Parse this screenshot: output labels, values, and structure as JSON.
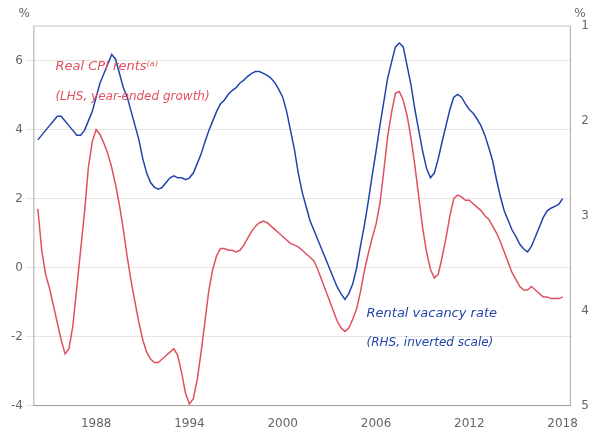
{
  "chart_data": {
    "type": "line",
    "ylabel": "%",
    "y2label": "%",
    "grid": true,
    "xlim": [
      1984.0,
      2018.5
    ],
    "xticks": [
      1988,
      1994,
      2000,
      2006,
      2012,
      2018
    ],
    "ylim": [
      -4,
      7
    ],
    "yticks": [
      -4,
      -2,
      0,
      2,
      4,
      6
    ],
    "y2lim": [
      5,
      1
    ],
    "y2ticks": [
      1,
      2,
      3,
      4,
      5
    ],
    "annotations": [
      {
        "text": "Real CPI rents⁽ᵃ⁾",
        "color": "#e05060"
      },
      {
        "text": "(LHS, year-ended growth)",
        "color": "#e05060"
      },
      {
        "text": "Rental vacancy rate",
        "color": "#2244aa"
      },
      {
        "text": "(RHS, inverted scale)",
        "color": "#2244aa"
      }
    ],
    "x": [
      1984.25,
      1984.5,
      1984.75,
      1985.0,
      1985.25,
      1985.5,
      1985.75,
      1986.0,
      1986.25,
      1986.5,
      1986.75,
      1987.0,
      1987.25,
      1987.5,
      1987.75,
      1988.0,
      1988.25,
      1988.5,
      1988.75,
      1989.0,
      1989.25,
      1989.5,
      1989.75,
      1990.0,
      1990.25,
      1990.5,
      1990.75,
      1991.0,
      1991.25,
      1991.5,
      1991.75,
      1992.0,
      1992.25,
      1992.5,
      1992.75,
      1993.0,
      1993.25,
      1993.5,
      1993.75,
      1994.0,
      1994.25,
      1994.5,
      1994.75,
      1995.0,
      1995.25,
      1995.5,
      1995.75,
      1996.0,
      1996.25,
      1996.5,
      1996.75,
      1997.0,
      1997.25,
      1997.5,
      1997.75,
      1998.0,
      1998.25,
      1998.5,
      1998.75,
      1999.0,
      1999.25,
      1999.5,
      1999.75,
      2000.0,
      2000.25,
      2000.5,
      2000.75,
      2001.0,
      2001.25,
      2001.5,
      2001.75,
      2002.0,
      2002.25,
      2002.5,
      2002.75,
      2003.0,
      2003.25,
      2003.5,
      2003.75,
      2004.0,
      2004.25,
      2004.5,
      2004.75,
      2005.0,
      2005.25,
      2005.5,
      2005.75,
      2006.0,
      2006.25,
      2006.5,
      2006.75,
      2007.0,
      2007.25,
      2007.5,
      2007.75,
      2008.0,
      2008.25,
      2008.5,
      2008.75,
      2009.0,
      2009.25,
      2009.5,
      2009.75,
      2010.0,
      2010.25,
      2010.5,
      2010.75,
      2011.0,
      2011.25,
      2011.5,
      2011.75,
      2012.0,
      2012.25,
      2012.5,
      2012.75,
      2013.0,
      2013.25,
      2013.5,
      2013.75,
      2014.0,
      2014.25,
      2014.5,
      2014.75,
      2015.0,
      2015.25,
      2015.5,
      2015.75,
      2016.0,
      2016.25,
      2016.5,
      2016.75,
      2017.0,
      2017.25,
      2017.5,
      2017.75,
      2018.0
    ],
    "series": [
      {
        "color": "#e05060",
        "values": [
          1.7,
          0.5,
          -0.2,
          -0.6,
          -1.1,
          -1.6,
          -2.1,
          -2.5,
          -2.35,
          -1.7,
          -0.6,
          0.5,
          1.6,
          2.9,
          3.65,
          4.0,
          3.85,
          3.6,
          3.3,
          2.9,
          2.4,
          1.8,
          1.1,
          0.3,
          -0.4,
          -1.0,
          -1.6,
          -2.1,
          -2.45,
          -2.65,
          -2.75,
          -2.75,
          -2.65,
          -2.55,
          -2.45,
          -2.35,
          -2.55,
          -3.05,
          -3.65,
          -3.95,
          -3.8,
          -3.25,
          -2.45,
          -1.55,
          -0.65,
          -0.05,
          0.35,
          0.55,
          0.55,
          0.5,
          0.5,
          0.45,
          0.5,
          0.65,
          0.85,
          1.05,
          1.2,
          1.3,
          1.35,
          1.3,
          1.2,
          1.1,
          1.0,
          0.9,
          0.8,
          0.7,
          0.65,
          0.6,
          0.5,
          0.4,
          0.3,
          0.2,
          -0.05,
          -0.35,
          -0.65,
          -0.95,
          -1.25,
          -1.55,
          -1.75,
          -1.85,
          -1.75,
          -1.5,
          -1.2,
          -0.7,
          -0.1,
          0.4,
          0.85,
          1.25,
          1.85,
          2.8,
          3.8,
          4.5,
          5.05,
          5.1,
          4.85,
          4.4,
          3.75,
          2.95,
          2.05,
          1.15,
          0.45,
          -0.05,
          -0.3,
          -0.2,
          0.3,
          0.85,
          1.5,
          2.0,
          2.1,
          2.05,
          1.95,
          1.95,
          1.85,
          1.75,
          1.65,
          1.5,
          1.4,
          1.2,
          1.0,
          0.75,
          0.45,
          0.15,
          -0.15,
          -0.35,
          -0.55,
          -0.65,
          -0.65,
          -0.55,
          -0.65,
          -0.75,
          -0.85,
          -0.85,
          -0.9,
          -0.9,
          -0.9,
          -0.85
        ]
      },
      {
        "color": "#2244aa",
        "axis": "y2",
        "values": [
          2.2,
          2.15,
          2.1,
          2.05,
          2.0,
          1.95,
          1.95,
          2.0,
          2.05,
          2.1,
          2.15,
          2.15,
          2.1,
          2.0,
          1.9,
          1.75,
          1.6,
          1.5,
          1.4,
          1.3,
          1.35,
          1.5,
          1.65,
          1.75,
          1.9,
          2.05,
          2.2,
          2.4,
          2.55,
          2.65,
          2.7,
          2.72,
          2.7,
          2.65,
          2.6,
          2.58,
          2.6,
          2.6,
          2.62,
          2.6,
          2.55,
          2.45,
          2.35,
          2.22,
          2.1,
          2.0,
          1.9,
          1.82,
          1.78,
          1.72,
          1.68,
          1.65,
          1.6,
          1.57,
          1.53,
          1.5,
          1.48,
          1.48,
          1.5,
          1.52,
          1.55,
          1.6,
          1.67,
          1.75,
          1.9,
          2.1,
          2.3,
          2.55,
          2.75,
          2.9,
          3.05,
          3.15,
          3.25,
          3.35,
          3.45,
          3.55,
          3.65,
          3.75,
          3.82,
          3.88,
          3.82,
          3.72,
          3.55,
          3.32,
          3.1,
          2.85,
          2.58,
          2.32,
          2.05,
          1.8,
          1.55,
          1.38,
          1.22,
          1.18,
          1.22,
          1.42,
          1.62,
          1.88,
          2.1,
          2.32,
          2.5,
          2.6,
          2.55,
          2.4,
          2.22,
          2.05,
          1.88,
          1.75,
          1.72,
          1.75,
          1.82,
          1.88,
          1.92,
          1.98,
          2.05,
          2.15,
          2.28,
          2.42,
          2.62,
          2.8,
          2.95,
          3.05,
          3.15,
          3.22,
          3.3,
          3.35,
          3.38,
          3.32,
          3.22,
          3.12,
          3.02,
          2.95,
          2.92,
          2.9,
          2.88,
          2.82
        ]
      }
    ]
  }
}
